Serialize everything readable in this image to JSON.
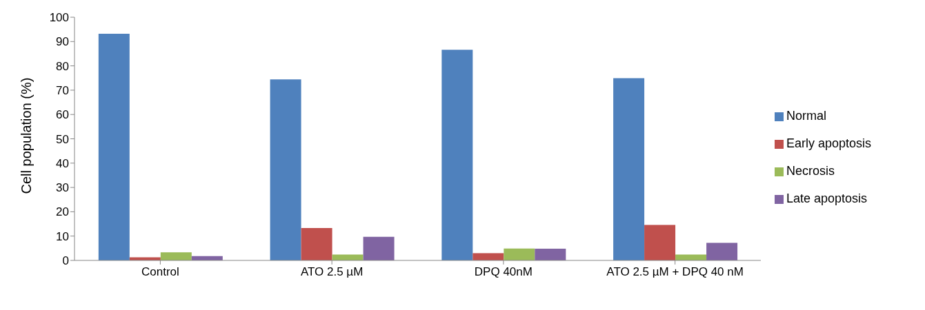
{
  "chart_data": {
    "type": "bar",
    "ylabel": "Cell population (%)",
    "categories": [
      "Control",
      "ATO 2.5 µM",
      "DPQ 40nM",
      "ATO 2.5 µM + DPQ 40 nM"
    ],
    "series": [
      {
        "name": "Normal",
        "color": "#4f81bd",
        "values": [
          93.2,
          74.4,
          86.6,
          74.9
        ]
      },
      {
        "name": "Early apoptosis",
        "color": "#c0504d",
        "values": [
          1.3,
          13.3,
          3.0,
          14.6
        ]
      },
      {
        "name": "Necrosis",
        "color": "#9bbb59",
        "values": [
          3.3,
          2.4,
          4.9,
          2.4
        ]
      },
      {
        "name": "Late apoptosis",
        "color": "#8064a2",
        "values": [
          1.8,
          9.7,
          4.8,
          7.2
        ]
      }
    ],
    "ylim": [
      0,
      100
    ],
    "yticks": [
      0,
      10,
      20,
      30,
      40,
      50,
      60,
      70,
      80,
      90,
      100
    ],
    "grid": false,
    "legend": "right"
  }
}
